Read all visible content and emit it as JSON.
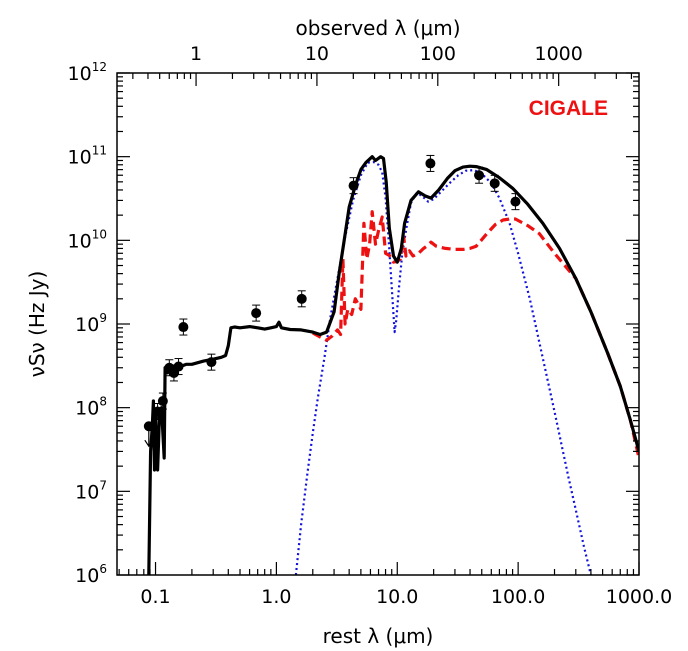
{
  "chart_data": {
    "type": "line",
    "xscale": "log",
    "yscale": "log",
    "xlim": [
      0.048,
      1000
    ],
    "ylim": [
      1000000.0,
      1000000000000.0
    ],
    "xlabel": "rest λ (μm)",
    "ylabel": "νSν (Hz Jy)",
    "top_xlabel": "observed λ (μm)",
    "top_axis_redshift": 3.62,
    "x_tick_labels": [
      "0.1",
      "1.0",
      "10.0",
      "100.0",
      "1000.0"
    ],
    "x_ticks": [
      0.1,
      1,
      10,
      100,
      1000
    ],
    "top_tick_labels": [
      "1",
      "10",
      "100",
      "1000"
    ],
    "top_ticks_observed": [
      1,
      10,
      100,
      1000
    ],
    "y_ticks": [
      {
        "base": "10",
        "exp": "6",
        "value": 1000000.0
      },
      {
        "base": "10",
        "exp": "7",
        "value": 10000000.0
      },
      {
        "base": "10",
        "exp": "8",
        "value": 100000000.0
      },
      {
        "base": "10",
        "exp": "9",
        "value": 1000000000.0
      },
      {
        "base": "10",
        "exp": "10",
        "value": 10000000000.0
      },
      {
        "base": "10",
        "exp": "11",
        "value": 100000000000.0
      },
      {
        "base": "10",
        "exp": "12",
        "value": 1000000000000.0
      }
    ],
    "legend": {
      "label": "CIGALE",
      "color": "#ee1111",
      "placement": "top-right"
    },
    "colors": {
      "total": "#000000",
      "stellar_agn": "#ee1111",
      "dust": "#1111dd"
    },
    "series": [
      {
        "style": "solid",
        "color": "#000000",
        "points": [
          [
            0.088,
            1000000.0
          ],
          [
            0.091,
            30000000.0
          ],
          [
            0.094,
            60000000.0
          ],
          [
            0.096,
            120000000.0
          ],
          [
            0.098,
            18000000.0
          ],
          [
            0.1,
            80000000.0
          ],
          [
            0.104,
            18000000.0
          ],
          [
            0.108,
            90000000.0
          ],
          [
            0.112,
            100000000.0
          ],
          [
            0.118,
            25000000.0
          ],
          [
            0.12,
            300000000.0
          ],
          [
            0.125,
            260000000.0
          ],
          [
            0.13,
            270000000.0
          ],
          [
            0.14,
            310000000.0
          ],
          [
            0.15,
            300000000.0
          ],
          [
            0.16,
            310000000.0
          ],
          [
            0.18,
            330000000.0
          ],
          [
            0.2,
            330000000.0
          ],
          [
            0.25,
            360000000.0
          ],
          [
            0.3,
            380000000.0
          ],
          [
            0.35,
            400000000.0
          ],
          [
            0.38,
            420000000.0
          ],
          [
            0.4,
            550000000.0
          ],
          [
            0.42,
            900000000.0
          ],
          [
            0.45,
            920000000.0
          ],
          [
            0.5,
            900000000.0
          ],
          [
            0.6,
            930000000.0
          ],
          [
            0.7,
            900000000.0
          ],
          [
            0.8,
            870000000.0
          ],
          [
            0.9,
            900000000.0
          ],
          [
            1.0,
            930000000.0
          ],
          [
            1.05,
            1050000000.0
          ],
          [
            1.1,
            900000000.0
          ],
          [
            1.3,
            860000000.0
          ],
          [
            1.6,
            850000000.0
          ],
          [
            2.0,
            800000000.0
          ],
          [
            2.3,
            750000000.0
          ],
          [
            2.6,
            800000000.0
          ],
          [
            3.0,
            1400000000.0
          ],
          [
            3.3,
            4000000000.0
          ],
          [
            3.6,
            9000000000.0
          ],
          [
            4.0,
            25000000000.0
          ],
          [
            4.5,
            45000000000.0
          ],
          [
            5.0,
            70000000000.0
          ],
          [
            5.5,
            85000000000.0
          ],
          [
            6.2,
            100000000000.0
          ],
          [
            6.6,
            90000000000.0
          ],
          [
            7.3,
            100000000000.0
          ],
          [
            7.7,
            95000000000.0
          ],
          [
            8.1,
            50000000000.0
          ],
          [
            8.6,
            14000000000.0
          ],
          [
            9.3,
            6500000000.0
          ],
          [
            10.0,
            5500000000.0
          ],
          [
            10.8,
            8000000000.0
          ],
          [
            11.5,
            16000000000.0
          ],
          [
            13,
            30000000000.0
          ],
          [
            15,
            38000000000.0
          ],
          [
            17,
            34000000000.0
          ],
          [
            19,
            32000000000.0
          ],
          [
            22,
            40000000000.0
          ],
          [
            26,
            55000000000.0
          ],
          [
            30,
            68000000000.0
          ],
          [
            35,
            75000000000.0
          ],
          [
            40,
            77000000000.0
          ],
          [
            45,
            76000000000.0
          ],
          [
            55,
            70000000000.0
          ],
          [
            70,
            56000000000.0
          ],
          [
            90,
            42000000000.0
          ],
          [
            120,
            27000000000.0
          ],
          [
            160,
            16000000000.0
          ],
          [
            220,
            8000000000.0
          ],
          [
            300,
            3500000000.0
          ],
          [
            400,
            1400000000.0
          ],
          [
            550,
            450000000.0
          ],
          [
            700,
            180000000.0
          ],
          [
            850,
            70000000.0
          ],
          [
            1000,
            30000000.0
          ]
        ]
      },
      {
        "style": "dashed",
        "color": "#ee1111",
        "points": [
          [
            2.0,
            780000000.0
          ],
          [
            2.3,
            700000000.0
          ],
          [
            2.6,
            640000000.0
          ],
          [
            2.9,
            720000000.0
          ],
          [
            3.2,
            850000000.0
          ],
          [
            3.4,
            750000000.0
          ],
          [
            3.55,
            6000000000.0
          ],
          [
            3.7,
            1000000000.0
          ],
          [
            3.9,
            1500000000.0
          ],
          [
            4.2,
            1300000000.0
          ],
          [
            4.5,
            2000000000.0
          ],
          [
            5.0,
            1500000000.0
          ],
          [
            5.3,
            16000000000.0
          ],
          [
            5.6,
            6000000000.0
          ],
          [
            5.9,
            9000000000.0
          ],
          [
            6.2,
            22000000000.0
          ],
          [
            6.6,
            9000000000.0
          ],
          [
            7.0,
            13000000000.0
          ],
          [
            7.5,
            19000000000.0
          ],
          [
            8.0,
            7000000000.0
          ],
          [
            8.6,
            6600000000.0
          ],
          [
            9.3,
            5500000000.0
          ],
          [
            10.0,
            5600000000.0
          ],
          [
            10.6,
            6000000000.0
          ],
          [
            11.3,
            11000000000.0
          ],
          [
            11.8,
            6500000000.0
          ],
          [
            12.6,
            7500000000.0
          ],
          [
            13.5,
            6500000000.0
          ],
          [
            15,
            7000000000.0
          ],
          [
            16.5,
            8000000000.0
          ],
          [
            17.5,
            8500000000.0
          ],
          [
            19,
            9500000000.0
          ],
          [
            21,
            8500000000.0
          ],
          [
            25,
            8000000000.0
          ],
          [
            30,
            7800000000.0
          ],
          [
            35,
            7800000000.0
          ],
          [
            40,
            8000000000.0
          ],
          [
            45,
            8500000000.0
          ],
          [
            55,
            12000000000.0
          ],
          [
            65,
            15500000000.0
          ],
          [
            75,
            17500000000.0
          ],
          [
            85,
            18000000000.0
          ],
          [
            95,
            18000000000.0
          ],
          [
            120,
            15000000000.0
          ],
          [
            150,
            12000000000.0
          ],
          [
            200,
            7000000000.0
          ],
          [
            300,
            3500000000.0
          ],
          [
            400,
            1400000000.0
          ],
          [
            550,
            450000000.0
          ],
          [
            700,
            180000000.0
          ],
          [
            850,
            70000000.0
          ],
          [
            1000,
            25000000.0
          ]
        ]
      },
      {
        "style": "dotted",
        "color": "#1111dd",
        "points": [
          [
            1.45,
            1000000.0
          ],
          [
            1.6,
            4000000.0
          ],
          [
            1.8,
            16000000.0
          ],
          [
            2.0,
            50000000.0
          ],
          [
            2.2,
            130000000.0
          ],
          [
            2.5,
            400000000.0
          ],
          [
            2.8,
            1200000000.0
          ],
          [
            3.2,
            3500000000.0
          ],
          [
            3.7,
            11000000000.0
          ],
          [
            4.3,
            30000000000.0
          ],
          [
            5.0,
            60000000000.0
          ],
          [
            5.7,
            85000000000.0
          ],
          [
            6.4,
            86000000000.0
          ],
          [
            7.0,
            80000000000.0
          ],
          [
            7.5,
            65000000000.0
          ],
          [
            8.0,
            32000000000.0
          ],
          [
            8.5,
            10000000000.0
          ],
          [
            9.0,
            2800000000.0
          ],
          [
            9.5,
            800000000.0
          ],
          [
            9.8,
            1100000000.0
          ],
          [
            10.4,
            3000000000.0
          ],
          [
            11.0,
            7000000000.0
          ],
          [
            12,
            15000000000.0
          ],
          [
            13,
            28000000000.0
          ],
          [
            14.5,
            37000000000.0
          ],
          [
            16,
            34000000000.0
          ],
          [
            18,
            29000000000.0
          ],
          [
            20,
            31000000000.0
          ],
          [
            23,
            38000000000.0
          ],
          [
            27,
            48000000000.0
          ],
          [
            32,
            60000000000.0
          ],
          [
            37,
            68000000000.0
          ],
          [
            43,
            69000000000.0
          ],
          [
            50,
            63000000000.0
          ],
          [
            60,
            48000000000.0
          ],
          [
            70,
            32000000000.0
          ],
          [
            85,
            16000000000.0
          ],
          [
            100,
            7000000000.0
          ],
          [
            125,
            2000000000.0
          ],
          [
            150,
            600000000.0
          ],
          [
            200,
            90000000.0
          ],
          [
            260,
            15000000.0
          ],
          [
            300,
            6000000.0
          ],
          [
            350,
            2200000.0
          ],
          [
            400,
            1000000.0
          ]
        ]
      }
    ],
    "points": [
      {
        "x": 0.088,
        "y": 60000000.0,
        "upper_limit": true
      },
      {
        "x": 0.104,
        "y": 90000000.0
      },
      {
        "x": 0.115,
        "y": 120000000.0
      },
      {
        "x": 0.13,
        "y": 300000000.0
      },
      {
        "x": 0.142,
        "y": 260000000.0
      },
      {
        "x": 0.155,
        "y": 310000000.0
      },
      {
        "x": 0.17,
        "y": 920000000.0
      },
      {
        "x": 0.29,
        "y": 350000000.0
      },
      {
        "x": 0.68,
        "y": 1350000000.0
      },
      {
        "x": 1.62,
        "y": 2000000000.0
      },
      {
        "x": 4.35,
        "y": 45000000000.0
      },
      {
        "x": 18.8,
        "y": 83000000000.0
      },
      {
        "x": 47.5,
        "y": 60000000000.0
      },
      {
        "x": 64,
        "y": 48000000000.0
      },
      {
        "x": 95,
        "y": 29000000000.0
      }
    ]
  }
}
